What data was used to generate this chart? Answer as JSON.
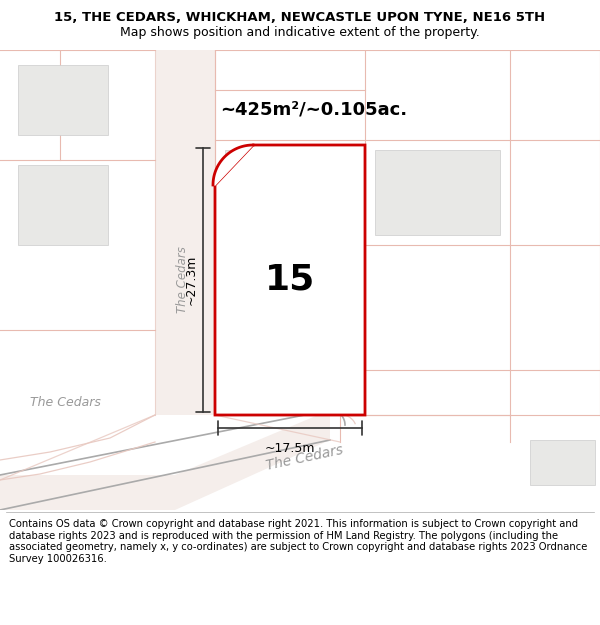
{
  "title_line1": "15, THE CEDARS, WHICKHAM, NEWCASTLE UPON TYNE, NE16 5TH",
  "title_line2": "Map shows position and indicative extent of the property.",
  "area_text": "~425m²/~0.105ac.",
  "label_number": "15",
  "dim_width": "~17.5m",
  "dim_height": "~27.3m",
  "road_label_bottom": "The Cedars",
  "road_label_vert": "The Cedars",
  "road_label_left": "The Cedars",
  "footer": "Contains OS data © Crown copyright and database right 2021. This information is subject to Crown copyright and database rights 2023 and is reproduced with the permission of HM Land Registry. The polygons (including the associated geometry, namely x, y co-ordinates) are subject to Crown copyright and database rights 2023 Ordnance Survey 100026316.",
  "map_bg": "#f7f5f2",
  "road_fill": "#f5eeeb",
  "road_color": "#e8c8c0",
  "boundary_color": "#cc0000",
  "building_fill": "#e8e8e6",
  "building_edge": "#cccccc",
  "white_fill": "#ffffff",
  "title_fontsize": 9.5,
  "footer_fontsize": 7.2,
  "road_label_color": "#999999",
  "dim_color": "#333333",
  "grid_color": "#e8bab0"
}
